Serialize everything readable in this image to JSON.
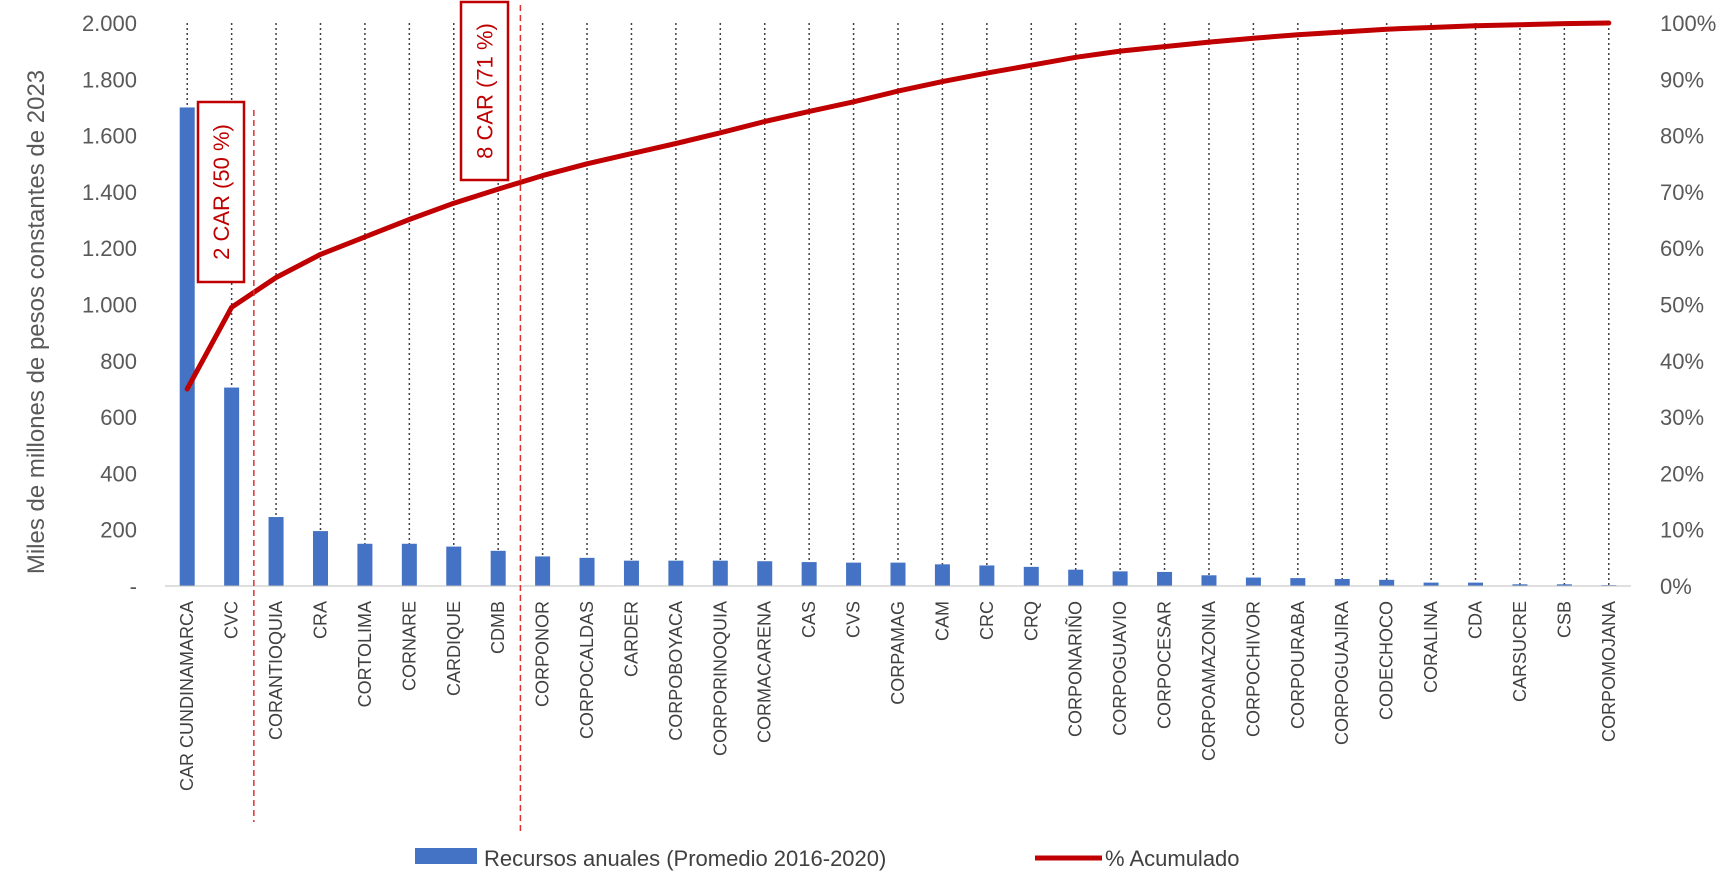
{
  "chart_data": {
    "type": "bar",
    "ylabel": "Miles de millones de pesos constantes de 2023",
    "y_left_ticks": [
      "-",
      "200",
      "400",
      "600",
      "800",
      "1.000",
      "1.200",
      "1.400",
      "1.600",
      "1.800",
      "2.000"
    ],
    "y_right_ticks": [
      "0%",
      "10%",
      "20%",
      "30%",
      "40%",
      "50%",
      "60%",
      "70%",
      "80%",
      "90%",
      "100%"
    ],
    "ylim": [
      0,
      2000
    ],
    "y2lim": [
      0,
      100
    ],
    "categories": [
      "CAR CUNDINAMARCA",
      "CVC",
      "CORANTIOQUIA",
      "CRA",
      "CORTOLIMA",
      "CORNARE",
      "CARDIQUE",
      "CDMB",
      "CORPONOR",
      "CORPOCALDAS",
      "CARDER",
      "CORPOBOYACA",
      "CORPORINOQUIA",
      "CORMACARENA",
      "CAS",
      "CVS",
      "CORPAMAG",
      "CAM",
      "CRC",
      "CRQ",
      "CORPONARIÑO",
      "CORPOGUAVIO",
      "CORPOCESAR",
      "CORPOAMAZONIA",
      "CORPOCHIVOR",
      "CORPOURABA",
      "CORPOGUAJIRA",
      "CODECHOCO",
      "CORALINA",
      "CDA",
      "CARSUCRE",
      "CSB",
      "CORPOMOJANA"
    ],
    "series": [
      {
        "name": "Recursos anuales (Promedio  2016-2020)",
        "type": "bar",
        "color": "#4472c4",
        "values": [
          1700,
          705,
          245,
          195,
          150,
          150,
          140,
          125,
          105,
          100,
          90,
          90,
          90,
          88,
          85,
          83,
          83,
          77,
          73,
          68,
          58,
          52,
          50,
          38,
          30,
          28,
          25,
          22,
          12,
          12,
          6,
          6,
          3
        ]
      },
      {
        "name": "% Acumulado",
        "type": "line",
        "color": "#c00000",
        "axis": "right",
        "values": [
          35.0,
          49.5,
          54.8,
          58.9,
          62.0,
          65.1,
          68.0,
          70.5,
          72.9,
          75.0,
          76.8,
          78.6,
          80.5,
          82.5,
          84.3,
          86.0,
          87.9,
          89.6,
          91.1,
          92.5,
          93.9,
          95.0,
          95.8,
          96.6,
          97.3,
          97.9,
          98.4,
          98.9,
          99.2,
          99.5,
          99.7,
          99.9,
          100.0
        ]
      }
    ],
    "annotations": [
      {
        "label": "2 CAR (50 %)",
        "after_index": 1
      },
      {
        "label": "8 CAR (71 %)",
        "after_index": 7
      }
    ],
    "legend_position": "bottom",
    "grid": "vertical-dotted"
  }
}
